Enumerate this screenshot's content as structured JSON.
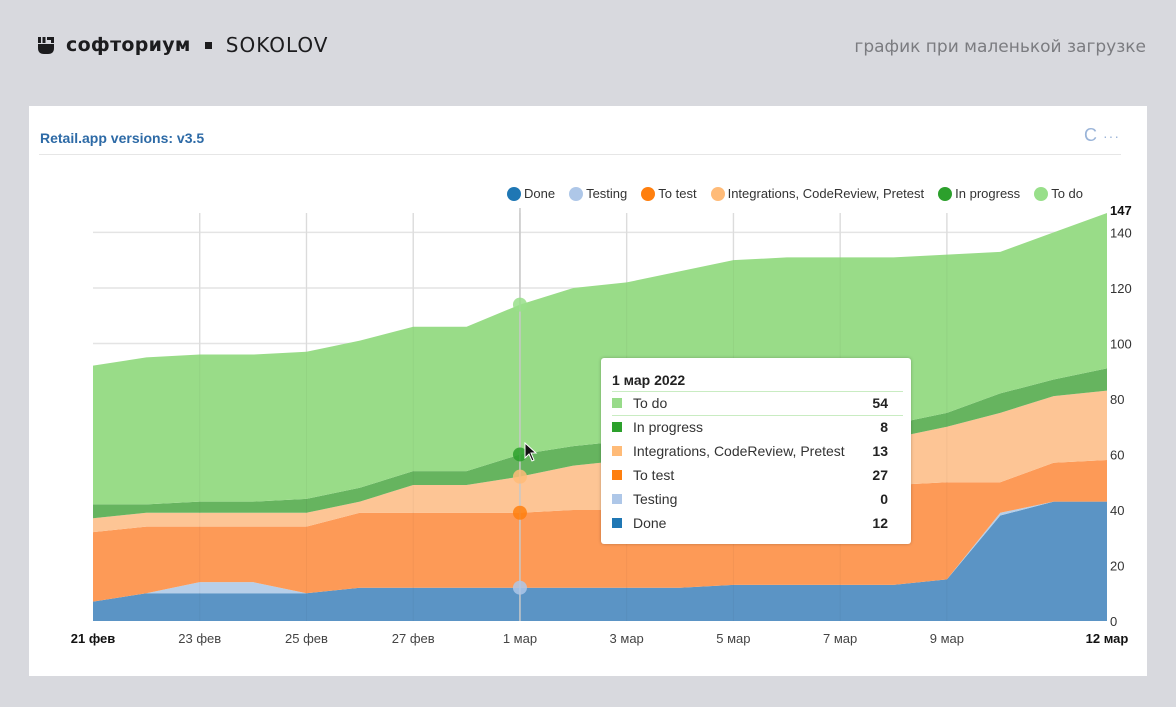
{
  "header": {
    "brand_name": "софториум",
    "brand_partner": "SOKOLOV",
    "caption": "график при маленькой загрузке",
    "logo_icon": "fist-icon"
  },
  "card": {
    "title": "Retail.app versions: v3.5",
    "actions": {
      "refresh_icon": "refresh-icon",
      "refresh_glyph": "C",
      "more_icon": "more-icon",
      "more_glyph": "···"
    }
  },
  "tooltip": {
    "date": "1 мар 2022",
    "rows": [
      {
        "label": "To do",
        "value": "54",
        "color": "#98db8a"
      },
      {
        "label": "In progress",
        "value": "8",
        "color": "#2ca02c"
      },
      {
        "label": "Integrations, CodeReview, Pretest",
        "value": "13",
        "color": "#ffbb78"
      },
      {
        "label": "To test",
        "value": "27",
        "color": "#ff7f0e"
      },
      {
        "label": "Testing",
        "value": "0",
        "color": "#aec7e8"
      },
      {
        "label": "Done",
        "value": "12",
        "color": "#1f77b4"
      }
    ]
  },
  "chart_data": {
    "type": "area",
    "stacked": true,
    "title": "Retail.app versions: v3.5",
    "x": [
      "21 фев",
      "22 фев",
      "23 фев",
      "24 фев",
      "25 фев",
      "26 фев",
      "27 фев",
      "28 фев",
      "1 мар",
      "2 мар",
      "3 мар",
      "4 мар",
      "5 мар",
      "6 мар",
      "7 мар",
      "8 мар",
      "9 мар",
      "10 мар",
      "11 мар",
      "12 мар"
    ],
    "x_tick_labels": [
      "21 фев",
      "23 фев",
      "25 фев",
      "27 фев",
      "1 мар",
      "3 мар",
      "5 мар",
      "7 мар",
      "9 мар",
      "12 мар"
    ],
    "x_tick_index": [
      0,
      2,
      4,
      6,
      8,
      10,
      12,
      14,
      16,
      19
    ],
    "x_bold_ticks": [
      "21 фев",
      "12 мар"
    ],
    "ylim": [
      0,
      147
    ],
    "y_ticks": [
      0,
      20,
      40,
      60,
      80,
      100,
      120,
      140
    ],
    "y_max_label": "147",
    "y_axis_position": "right",
    "grid": true,
    "legend_position": "top-right",
    "hover_index": 8,
    "series": [
      {
        "name": "Done",
        "color": "#1f77b4",
        "fill": "#5b94c5",
        "values": [
          7,
          10,
          10,
          10,
          10,
          12,
          12,
          12,
          12,
          12,
          12,
          12,
          13,
          13,
          13,
          13,
          15,
          38,
          43,
          43
        ]
      },
      {
        "name": "Testing",
        "color": "#aec7e8",
        "fill": "#b7cfe9",
        "values": [
          0,
          0,
          4,
          4,
          0,
          0,
          0,
          0,
          0,
          0,
          0,
          0,
          0,
          0,
          0,
          0,
          0,
          1,
          0,
          0
        ]
      },
      {
        "name": "To test",
        "color": "#ff7f0e",
        "fill": "#fd9a57",
        "values": [
          25,
          24,
          20,
          20,
          24,
          27,
          27,
          27,
          27,
          28,
          28,
          28,
          27,
          27,
          27,
          36,
          35,
          11,
          14,
          15
        ]
      },
      {
        "name": "Integrations, CodeReview, Pretest",
        "color": "#ffbb78",
        "fill": "#fdc595",
        "values": [
          5,
          5,
          5,
          5,
          5,
          4,
          10,
          10,
          13,
          16,
          18,
          20,
          22,
          23,
          24,
          17,
          20,
          25,
          24,
          25
        ]
      },
      {
        "name": "In progress",
        "color": "#2ca02c",
        "fill": "#66b45f",
        "values": [
          5,
          3,
          4,
          4,
          5,
          5,
          5,
          5,
          8,
          7,
          7,
          6,
          6,
          6,
          6,
          5,
          5,
          7,
          6,
          8
        ]
      },
      {
        "name": "To do",
        "color": "#98df8a",
        "fill": "#99dc88",
        "values": [
          50,
          53,
          53,
          53,
          53,
          53,
          52,
          52,
          54,
          57,
          57,
          60,
          62,
          62,
          61,
          60,
          57,
          51,
          53,
          56
        ]
      }
    ]
  }
}
